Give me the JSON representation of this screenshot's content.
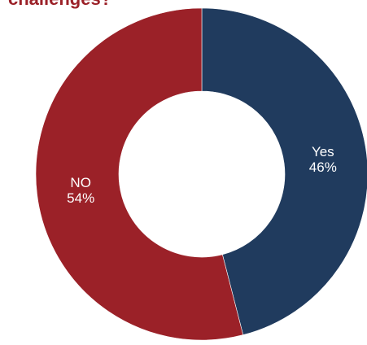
{
  "chart_data": {
    "type": "pie",
    "title": "challenges?",
    "slices": [
      {
        "label": "Yes",
        "value": 46,
        "value_label": "46%",
        "color": "#203b5e"
      },
      {
        "label": "NO",
        "value": 54,
        "value_label": "54%",
        "color": "#9b2128"
      }
    ],
    "style": "donut",
    "start": "top",
    "direction": "clockwise"
  }
}
